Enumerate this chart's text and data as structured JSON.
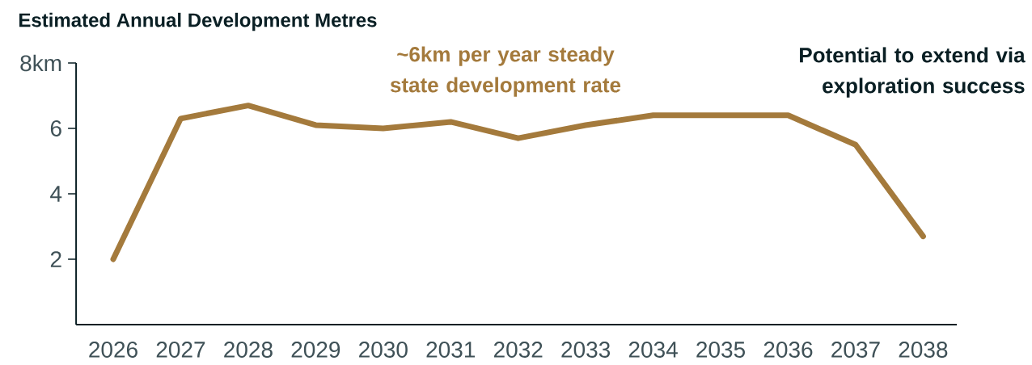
{
  "chart_data": {
    "type": "line",
    "title": "Estimated Annual Development Metres",
    "categories": [
      "2026",
      "2027",
      "2028",
      "2029",
      "2030",
      "2031",
      "2032",
      "2033",
      "2034",
      "2035",
      "2036",
      "2037",
      "2038"
    ],
    "series": [
      {
        "color": "#a47a3c",
        "values": [
          2.0,
          6.3,
          6.7,
          6.1,
          6.0,
          6.2,
          5.7,
          6.1,
          6.4,
          6.4,
          6.4,
          5.5,
          2.7
        ]
      }
    ],
    "ylim": [
      0,
      8
    ],
    "yticks": [
      2,
      4,
      6,
      {
        "value": 8,
        "label": "8km"
      }
    ],
    "annotations": [
      "~6km per year steady state development rate",
      "Potential to extend via exploration success"
    ],
    "marker": "none",
    "line_style": "solid"
  }
}
